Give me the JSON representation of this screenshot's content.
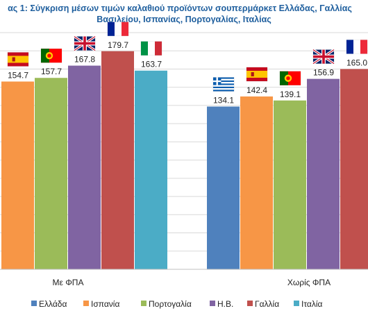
{
  "chart_data": {
    "type": "bar",
    "title_line1": "ας 1: Σύγκριση μέσων τιμών καλαθιού προϊόντων σουπερμάρκετ Ελλάδας, Γαλλίας",
    "title_line2": "Βασιλείου, Ισπανίας, Πορτογαλίας, Ιταλίας",
    "categories": [
      "Με ΦΠΑ",
      "Χωρίς ΦΠΑ"
    ],
    "series": [
      {
        "name": "Ελλάδα",
        "color": "#4f81bd",
        "flag": "greece-flag-icon",
        "values": [
          null,
          134.1
        ]
      },
      {
        "name": "Ισπανία",
        "color": "#f79646",
        "flag": "spain-flag-icon",
        "values": [
          154.7,
          142.4
        ]
      },
      {
        "name": "Πορτογαλία",
        "color": "#9bbb59",
        "flag": "portugal-flag-icon",
        "values": [
          157.7,
          139.1
        ]
      },
      {
        "name": "Η.Β.",
        "color": "#8064a2",
        "flag": "uk-flag-icon",
        "values": [
          167.8,
          156.9
        ]
      },
      {
        "name": "Γαλλία",
        "color": "#c0504d",
        "flag": "france-flag-icon",
        "values": [
          179.7,
          "165.0"
        ]
      },
      {
        "name": "Ιταλία",
        "color": "#4bacc6",
        "flag": "italy-flag-icon",
        "values": [
          163.7,
          null
        ]
      }
    ],
    "ylim": [
      0,
      195
    ],
    "grid": true,
    "legend": "bottom"
  }
}
